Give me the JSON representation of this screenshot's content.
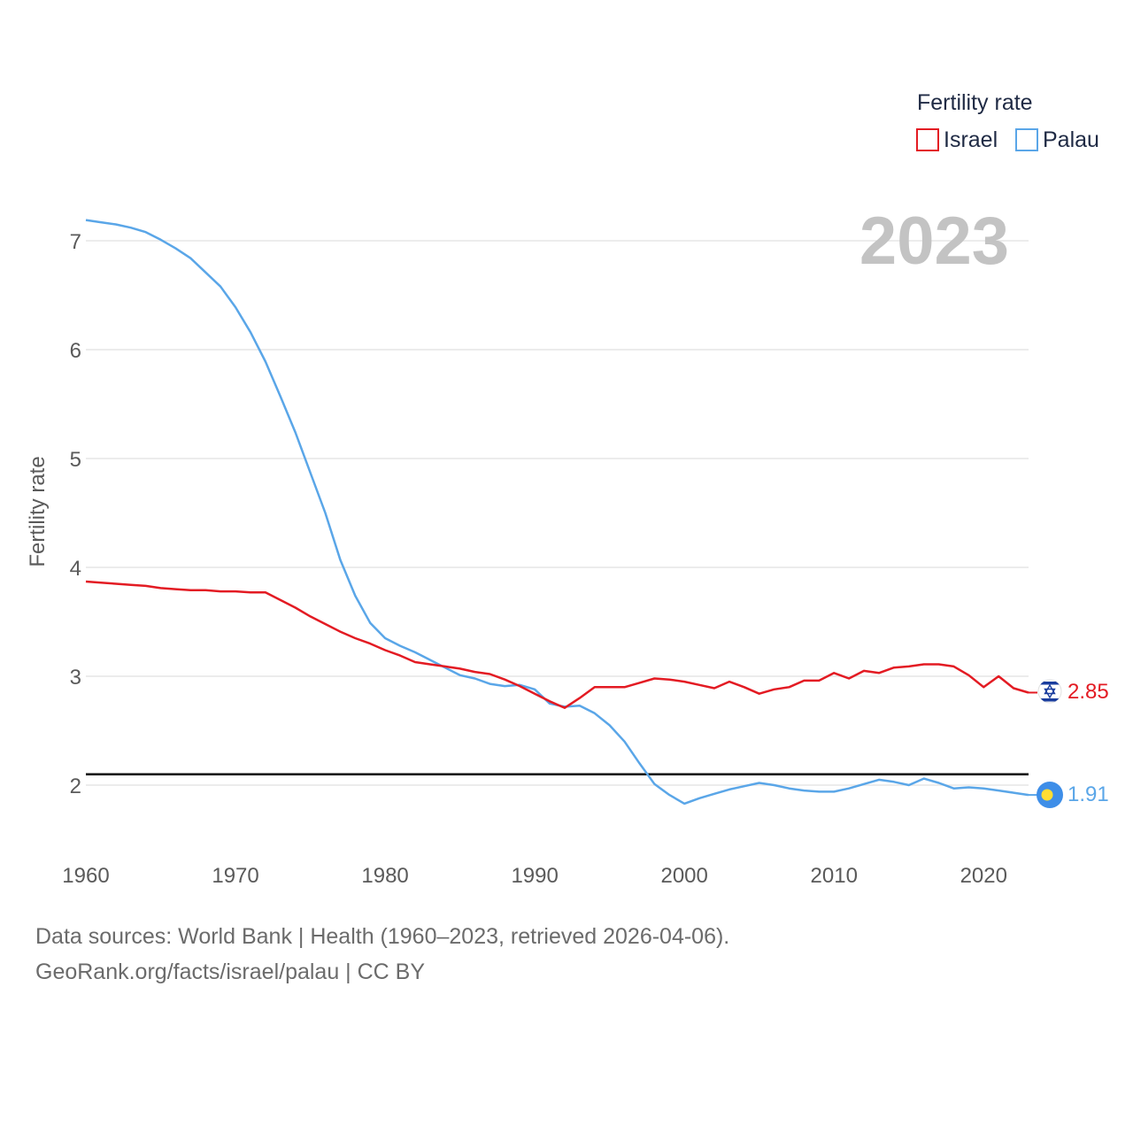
{
  "legend": {
    "title": "Fertility rate",
    "items": [
      {
        "label": "Israel",
        "color": "#e31b23"
      },
      {
        "label": "Palau",
        "color": "#5aa6e8"
      }
    ]
  },
  "year_display": "2023",
  "footer": {
    "line1": "Data sources: World Bank | Health (1960–2023, retrieved 2026-04-06).",
    "line2": "GeoRank.org/facts/israel/palau | CC BY"
  },
  "chart_data": {
    "type": "line",
    "title": "Fertility rate",
    "xlabel": "",
    "ylabel": "Fertility rate",
    "xlim": [
      1960,
      2023
    ],
    "ylim": [
      1.5,
      7.2
    ],
    "xticks": [
      1960,
      1970,
      1980,
      1990,
      2000,
      2010,
      2020
    ],
    "yticks": [
      2,
      3,
      4,
      5,
      6,
      7
    ],
    "grid": true,
    "reference_line": {
      "value": 2.1,
      "color": "#000000"
    },
    "x": [
      1960,
      1961,
      1962,
      1963,
      1964,
      1965,
      1966,
      1967,
      1968,
      1969,
      1970,
      1971,
      1972,
      1973,
      1974,
      1975,
      1976,
      1977,
      1978,
      1979,
      1980,
      1981,
      1982,
      1983,
      1984,
      1985,
      1986,
      1987,
      1988,
      1989,
      1990,
      1991,
      1992,
      1993,
      1994,
      1995,
      1996,
      1997,
      1998,
      1999,
      2000,
      2001,
      2002,
      2003,
      2004,
      2005,
      2006,
      2007,
      2008,
      2009,
      2010,
      2011,
      2012,
      2013,
      2014,
      2015,
      2016,
      2017,
      2018,
      2019,
      2020,
      2021,
      2022,
      2023
    ],
    "series": [
      {
        "name": "Israel",
        "color": "#e31b23",
        "end_label": "2.85",
        "values": [
          3.87,
          3.86,
          3.85,
          3.84,
          3.83,
          3.81,
          3.8,
          3.79,
          3.79,
          3.78,
          3.78,
          3.77,
          3.77,
          3.7,
          3.63,
          3.55,
          3.48,
          3.41,
          3.35,
          3.3,
          3.24,
          3.19,
          3.13,
          3.11,
          3.09,
          3.07,
          3.04,
          3.02,
          2.97,
          2.91,
          2.84,
          2.77,
          2.71,
          2.8,
          2.9,
          2.9,
          2.9,
          2.94,
          2.98,
          2.97,
          2.95,
          2.92,
          2.89,
          2.95,
          2.9,
          2.84,
          2.88,
          2.9,
          2.96,
          2.96,
          3.03,
          2.98,
          3.05,
          3.03,
          3.08,
          3.09,
          3.11,
          3.11,
          3.09,
          3.01,
          2.9,
          3.0,
          2.89,
          2.85
        ]
      },
      {
        "name": "Palau",
        "color": "#5aa6e8",
        "end_label": "1.91",
        "values": [
          7.19,
          7.17,
          7.15,
          7.12,
          7.08,
          7.01,
          6.93,
          6.84,
          6.71,
          6.58,
          6.39,
          6.16,
          5.89,
          5.57,
          5.24,
          4.87,
          4.5,
          4.07,
          3.74,
          3.49,
          3.35,
          3.28,
          3.22,
          3.15,
          3.08,
          3.01,
          2.98,
          2.93,
          2.91,
          2.92,
          2.88,
          2.75,
          2.72,
          2.73,
          2.66,
          2.55,
          2.4,
          2.2,
          2.01,
          1.91,
          1.83,
          1.88,
          1.92,
          1.96,
          1.99,
          2.02,
          2.0,
          1.97,
          1.95,
          1.94,
          1.94,
          1.97,
          2.01,
          2.05,
          2.03,
          2.0,
          2.06,
          2.02,
          1.97,
          1.98,
          1.97,
          1.95,
          1.93,
          1.91
        ]
      }
    ]
  }
}
